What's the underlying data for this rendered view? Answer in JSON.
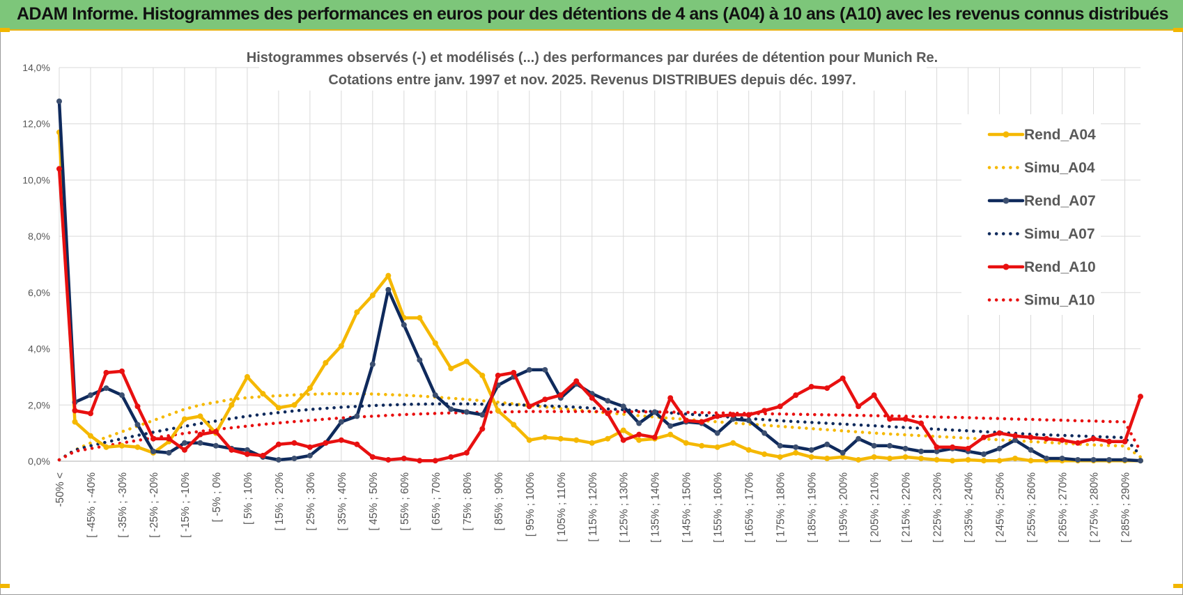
{
  "header": {
    "title": "ADAM Informe. Histogrammes des performances en euros pour des détentions de 4 ans (A04) à 10 ans (A10) avec les revenus connus distribués"
  },
  "chart_data": {
    "type": "line",
    "title": "Histogrammes observés (-) et modélisés (...) des performances par durées de détention pour Munich Re.",
    "subtitle": "Cotations entre janv. 1997 et nov. 2025. Revenus DISTRIBUES depuis déc. 1997.",
    "xlabel": "",
    "ylabel": "",
    "ylim": [
      0,
      14
    ],
    "y_ticks": [
      "0,0%",
      "2,0%",
      "4,0%",
      "6,0%",
      "8,0%",
      "10,0%",
      "12,0%",
      "14,0%"
    ],
    "grid": true,
    "legend_position": "right",
    "x_tick_labels": [
      "-50% <",
      "[ -45% ; -40%",
      "[ -35% ; -30%",
      "[ -25% ; -20%",
      "[ -15% ; -10%",
      "[ -5% ; 0%",
      "[ 5% ; 10%",
      "[ 15% ; 20%",
      "[ 25% ; 30%",
      "[ 35% ; 40%",
      "[ 45% ; 50%",
      "[ 55% ; 60%",
      "[ 65% ; 70%",
      "[ 75% ; 80%",
      "[ 85% ; 90%",
      "[ 95% ; 100%",
      "[ 105% ; 110%",
      "[ 115% ; 120%",
      "[ 125% ; 130%",
      "[ 135% ; 140%",
      "[ 145% ; 150%",
      "[ 155% ; 160%",
      "[ 165% ; 170%",
      "[ 175% ; 180%",
      "[ 185% ; 190%",
      "[ 195% ; 200%",
      "[ 205% ; 210%",
      "[ 215% ; 220%",
      "[ 225% ; 230%",
      "[ 235% ; 240%",
      "[ 245% ; 250%",
      "[ 255% ; 260%",
      "[ 265% ; 270%",
      "[ 275% ; 280%",
      "[ 285% ; 290%"
    ],
    "x_tick_positions": [
      0,
      2,
      4,
      6,
      8,
      10,
      12,
      14,
      16,
      18,
      20,
      22,
      24,
      26,
      28,
      30,
      32,
      34,
      36,
      38,
      40,
      42,
      44,
      46,
      48,
      50,
      52,
      54,
      56,
      58,
      60,
      62,
      64,
      66,
      68
    ],
    "n_categories": 70,
    "series": [
      {
        "name": "Rend_A04",
        "style": "solid",
        "marker": true,
        "color": "#f5b800",
        "values": [
          11.7,
          1.4,
          0.9,
          0.5,
          0.55,
          0.5,
          0.3,
          0.7,
          1.5,
          1.6,
          1.0,
          2.0,
          3.0,
          2.4,
          1.9,
          2.0,
          2.6,
          3.5,
          4.1,
          5.3,
          5.9,
          6.6,
          5.1,
          5.1,
          4.2,
          3.3,
          3.55,
          3.05,
          1.8,
          1.3,
          0.75,
          0.85,
          0.8,
          0.75,
          0.65,
          0.8,
          1.1,
          0.75,
          0.8,
          0.95,
          0.65,
          0.55,
          0.5,
          0.65,
          0.4,
          0.25,
          0.15,
          0.3,
          0.15,
          0.1,
          0.15,
          0.05,
          0.15,
          0.1,
          0.15,
          0.1,
          0.05,
          0.02,
          0.05,
          0.02,
          0.02,
          0.1,
          0.02,
          0.02,
          0.02,
          0.02,
          0.02,
          0.02,
          0.02,
          0.02
        ]
      },
      {
        "name": "Simu_A04",
        "style": "dotted",
        "marker": false,
        "color": "#f5b800",
        "values": [
          0.05,
          0.4,
          0.65,
          0.85,
          1.05,
          1.25,
          1.45,
          1.65,
          1.85,
          2.0,
          2.1,
          2.2,
          2.26,
          2.3,
          2.33,
          2.36,
          2.38,
          2.4,
          2.4,
          2.4,
          2.39,
          2.37,
          2.35,
          2.32,
          2.28,
          2.24,
          2.2,
          2.15,
          2.1,
          2.04,
          1.98,
          1.93,
          1.87,
          1.82,
          1.77,
          1.72,
          1.67,
          1.62,
          1.57,
          1.53,
          1.49,
          1.45,
          1.4,
          1.36,
          1.32,
          1.28,
          1.24,
          1.2,
          1.16,
          1.12,
          1.08,
          1.04,
          1.0,
          0.97,
          0.94,
          0.91,
          0.88,
          0.85,
          0.82,
          0.79,
          0.76,
          0.73,
          0.7,
          0.67,
          0.64,
          0.61,
          0.58,
          0.56,
          0.54,
          0.15
        ]
      },
      {
        "name": "Rend_A07",
        "style": "solid",
        "marker": true,
        "color": "#0f2a5c",
        "values": [
          12.8,
          2.1,
          2.35,
          2.6,
          2.35,
          1.3,
          0.35,
          0.3,
          0.65,
          0.65,
          0.55,
          0.45,
          0.4,
          0.15,
          0.05,
          0.1,
          0.2,
          0.65,
          1.4,
          1.6,
          3.45,
          6.1,
          4.85,
          3.6,
          2.35,
          1.85,
          1.75,
          1.65,
          2.7,
          3.0,
          3.25,
          3.25,
          2.25,
          2.75,
          2.4,
          2.15,
          1.95,
          1.35,
          1.75,
          1.25,
          1.4,
          1.35,
          1.0,
          1.5,
          1.45,
          1.0,
          0.55,
          0.5,
          0.4,
          0.6,
          0.3,
          0.8,
          0.55,
          0.55,
          0.45,
          0.35,
          0.35,
          0.45,
          0.35,
          0.25,
          0.45,
          0.75,
          0.4,
          0.1,
          0.1,
          0.05,
          0.05,
          0.05,
          0.05,
          0.02
        ]
      },
      {
        "name": "Simu_A07",
        "style": "dotted",
        "marker": false,
        "color": "#0f2a5c",
        "values": [
          0.05,
          0.4,
          0.55,
          0.68,
          0.8,
          0.92,
          1.03,
          1.14,
          1.24,
          1.34,
          1.43,
          1.52,
          1.6,
          1.67,
          1.73,
          1.79,
          1.84,
          1.88,
          1.92,
          1.95,
          1.98,
          2.0,
          2.02,
          2.03,
          2.04,
          2.04,
          2.04,
          2.03,
          2.02,
          2.01,
          1.99,
          1.97,
          1.95,
          1.92,
          1.89,
          1.86,
          1.83,
          1.8,
          1.76,
          1.72,
          1.68,
          1.64,
          1.6,
          1.56,
          1.52,
          1.48,
          1.44,
          1.41,
          1.38,
          1.35,
          1.32,
          1.29,
          1.26,
          1.23,
          1.2,
          1.17,
          1.14,
          1.11,
          1.08,
          1.05,
          1.02,
          0.99,
          0.96,
          0.94,
          0.92,
          0.9,
          0.88,
          0.86,
          0.84,
          0.2
        ]
      },
      {
        "name": "Rend_A10",
        "style": "solid",
        "marker": true,
        "color": "#e81010",
        "values": [
          10.4,
          1.8,
          1.7,
          3.15,
          3.2,
          1.95,
          0.8,
          0.8,
          0.4,
          0.95,
          1.05,
          0.4,
          0.25,
          0.2,
          0.6,
          0.65,
          0.5,
          0.65,
          0.75,
          0.6,
          0.15,
          0.05,
          0.1,
          0.02,
          0.02,
          0.15,
          0.3,
          1.15,
          3.05,
          3.15,
          1.95,
          2.2,
          2.35,
          2.85,
          2.25,
          1.7,
          0.75,
          0.95,
          0.85,
          2.25,
          1.45,
          1.4,
          1.6,
          1.65,
          1.65,
          1.8,
          1.95,
          2.35,
          2.65,
          2.6,
          2.95,
          1.95,
          2.35,
          1.5,
          1.5,
          1.35,
          0.5,
          0.5,
          0.45,
          0.85,
          1.0,
          0.9,
          0.85,
          0.8,
          0.75,
          0.65,
          0.8,
          0.7,
          0.7,
          2.3
        ]
      },
      {
        "name": "Simu_A10",
        "style": "dotted",
        "marker": false,
        "color": "#e81010",
        "values": [
          0.05,
          0.35,
          0.45,
          0.55,
          0.65,
          0.74,
          0.83,
          0.91,
          0.99,
          1.06,
          1.13,
          1.19,
          1.25,
          1.31,
          1.36,
          1.41,
          1.45,
          1.5,
          1.54,
          1.57,
          1.6,
          1.63,
          1.66,
          1.68,
          1.7,
          1.72,
          1.73,
          1.74,
          1.75,
          1.76,
          1.77,
          1.77,
          1.77,
          1.77,
          1.77,
          1.77,
          1.76,
          1.76,
          1.75,
          1.75,
          1.74,
          1.73,
          1.72,
          1.71,
          1.7,
          1.69,
          1.68,
          1.67,
          1.66,
          1.65,
          1.64,
          1.63,
          1.62,
          1.61,
          1.6,
          1.59,
          1.57,
          1.56,
          1.55,
          1.53,
          1.52,
          1.5,
          1.49,
          1.47,
          1.46,
          1.44,
          1.43,
          1.41,
          1.4,
          0.35
        ]
      }
    ]
  }
}
